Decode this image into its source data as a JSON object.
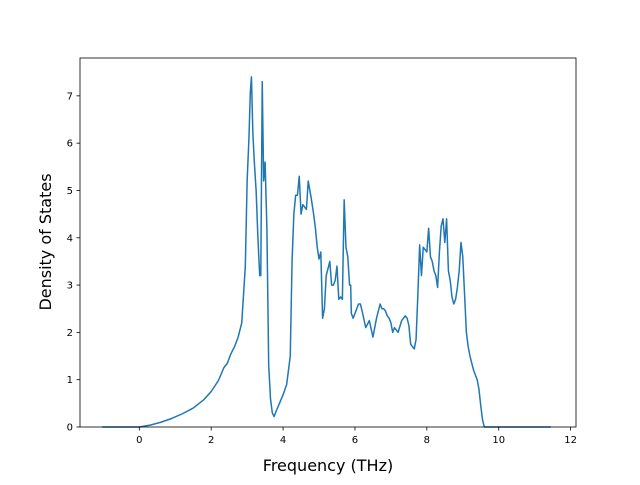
{
  "chart_data": {
    "type": "line",
    "title": "",
    "xlabel": "Frequency (THz)",
    "ylabel": "Density of States",
    "xlim": [
      -1.65,
      12.15
    ],
    "ylim": [
      0,
      7.8
    ],
    "xticks": [
      0,
      2,
      4,
      6,
      8,
      10,
      12
    ],
    "yticks": [
      0,
      1,
      2,
      3,
      4,
      5,
      6,
      7
    ],
    "grid": false,
    "line_color": "#1f77b4",
    "series": [
      {
        "x": [
          -1.03,
          -0.5,
          0.0,
          0.3,
          0.6,
          0.9,
          1.2,
          1.5,
          1.8,
          2.0,
          2.2,
          2.35,
          2.45,
          2.55,
          2.65,
          2.75,
          2.85,
          2.9,
          2.95,
          3.0,
          3.05,
          3.09,
          3.12,
          3.16,
          3.2,
          3.25,
          3.3,
          3.35,
          3.38,
          3.42,
          3.46,
          3.5,
          3.55,
          3.6,
          3.65,
          3.7,
          3.75,
          3.8,
          3.9,
          4.0,
          4.1,
          4.2,
          4.25,
          4.3,
          4.35,
          4.4,
          4.45,
          4.5,
          4.55,
          4.6,
          4.65,
          4.7,
          4.78,
          4.85,
          4.9,
          4.95,
          5.0,
          5.05,
          5.1,
          5.15,
          5.2,
          5.25,
          5.3,
          5.35,
          5.4,
          5.45,
          5.5,
          5.55,
          5.6,
          5.65,
          5.7,
          5.75,
          5.8,
          5.85,
          5.88,
          5.9,
          5.95,
          6.0,
          6.05,
          6.1,
          6.15,
          6.2,
          6.3,
          6.4,
          6.5,
          6.6,
          6.7,
          6.75,
          6.8,
          6.85,
          6.9,
          6.95,
          7.0,
          7.05,
          7.1,
          7.15,
          7.2,
          7.3,
          7.4,
          7.45,
          7.5,
          7.55,
          7.6,
          7.65,
          7.7,
          7.75,
          7.8,
          7.85,
          7.9,
          8.0,
          8.05,
          8.1,
          8.15,
          8.2,
          8.25,
          8.3,
          8.35,
          8.4,
          8.45,
          8.5,
          8.55,
          8.6,
          8.65,
          8.7,
          8.75,
          8.8,
          8.85,
          8.9,
          8.95,
          9.0,
          9.05,
          9.1,
          9.15,
          9.2,
          9.25,
          9.3,
          9.35,
          9.4,
          9.45,
          9.5,
          9.55,
          9.6,
          9.65,
          9.7,
          9.8,
          9.9,
          10.0,
          10.1,
          10.15,
          10.2,
          10.25,
          10.3,
          10.35,
          10.4,
          10.5,
          10.8,
          11.45
        ],
        "y": [
          0.0,
          0.0,
          0.0,
          0.04,
          0.1,
          0.18,
          0.28,
          0.4,
          0.58,
          0.75,
          0.98,
          1.25,
          1.35,
          1.55,
          1.7,
          1.9,
          2.2,
          2.8,
          3.4,
          5.2,
          6.1,
          7.1,
          7.4,
          6.2,
          5.6,
          5.0,
          4.0,
          3.2,
          3.2,
          7.3,
          5.2,
          5.6,
          4.2,
          1.3,
          0.6,
          0.3,
          0.22,
          0.32,
          0.5,
          0.68,
          0.9,
          1.5,
          3.5,
          4.5,
          4.9,
          4.9,
          5.3,
          4.5,
          4.7,
          4.65,
          4.6,
          5.2,
          4.85,
          4.5,
          4.2,
          3.8,
          3.55,
          3.7,
          2.3,
          2.5,
          3.2,
          3.35,
          3.5,
          3.0,
          3.0,
          3.1,
          3.4,
          2.7,
          2.75,
          2.7,
          4.8,
          3.8,
          3.6,
          3.0,
          3.0,
          2.4,
          2.3,
          2.4,
          2.5,
          2.6,
          2.6,
          2.45,
          2.1,
          2.25,
          1.9,
          2.3,
          2.6,
          2.5,
          2.5,
          2.45,
          2.35,
          2.3,
          2.2,
          2.0,
          2.1,
          2.05,
          2.0,
          2.25,
          2.35,
          2.3,
          2.15,
          1.75,
          1.7,
          1.65,
          1.85,
          2.8,
          3.85,
          3.2,
          3.8,
          3.7,
          4.2,
          3.6,
          3.5,
          3.3,
          3.2,
          2.95,
          3.7,
          4.25,
          4.4,
          3.9,
          4.4,
          3.3,
          3.1,
          2.75,
          2.6,
          2.7,
          2.95,
          3.3,
          3.9,
          3.6,
          2.8,
          2.0,
          1.7,
          1.5,
          1.35,
          1.2,
          1.1,
          1.0,
          0.8,
          0.45,
          0.15,
          0.0,
          0.0,
          0.0,
          0.0,
          0.0,
          0.0,
          0.0,
          0.0,
          0.0,
          0.0,
          0.0,
          0.0,
          0.0,
          0.0,
          0.0,
          0.0
        ]
      }
    ]
  }
}
